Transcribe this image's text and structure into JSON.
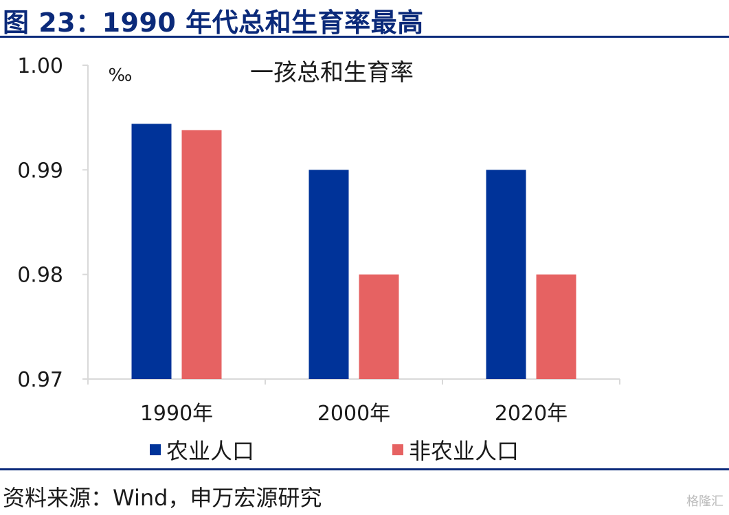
{
  "header": {
    "title": "图 23：1990 年代总和生育率最高"
  },
  "footer": {
    "source": "资料来源：Wind，申万宏源研究",
    "watermark": "格隆汇"
  },
  "colors": {
    "series1": "#003399",
    "series2": "#e66262",
    "brand": "#0b2a7a",
    "axis": "#d9d9d9"
  },
  "chart_data": {
    "type": "bar",
    "title": "一孩总和生育率",
    "ylabel": "‰",
    "xlabel": "",
    "categories": [
      "1990年",
      "2000年",
      "2020年"
    ],
    "series": [
      {
        "name": "农业人口",
        "values": [
          0.9944,
          0.99,
          0.99
        ]
      },
      {
        "name": "非农业人口",
        "values": [
          0.9938,
          0.98,
          0.98
        ]
      }
    ],
    "ylim": [
      0.97,
      1.0
    ],
    "yticks": [
      0.97,
      0.98,
      0.99,
      1.0
    ],
    "ytick_labels": [
      "0.97",
      "0.98",
      "0.99",
      "1.00"
    ],
    "grid": false,
    "legend": "bottom"
  }
}
